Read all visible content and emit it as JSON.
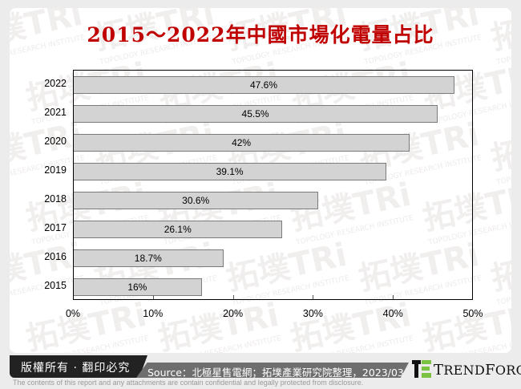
{
  "title": "2015～2022年中國市場化電量占比",
  "chart_data": {
    "type": "bar",
    "orientation": "horizontal",
    "title": "2015～2022年中國市場化電量占比",
    "categories": [
      "2022",
      "2021",
      "2020",
      "2019",
      "2018",
      "2017",
      "2016",
      "2015"
    ],
    "values": [
      47.6,
      45.5,
      42,
      39.1,
      30.6,
      26.1,
      18.7,
      16
    ],
    "data_labels": [
      "47.6%",
      "45.5%",
      "42%",
      "39.1%",
      "30.6%",
      "26.1%",
      "18.7%",
      "16%"
    ],
    "xlabel": "",
    "ylabel": "",
    "xlim": [
      0,
      50
    ],
    "x_ticks": [
      "0%",
      "10%",
      "20%",
      "30%",
      "40%",
      "50%"
    ],
    "grid": false,
    "bar_color": "#d3d3d3",
    "bar_border_color": "#7b7b7b",
    "legend": null
  },
  "footer": {
    "copyright": "版權所有 · 翻印必究",
    "source": "Source：北極星售電網；拓墣產業研究院整理，2023/03",
    "brand": "TrendForce",
    "disclaimer": "The contents of this report and any attachments are contain confidential and legally protected from disclosure."
  },
  "watermark": {
    "text": "拓墣TRi",
    "subtext": "TOPOLOGY RESEARCH INSTITUTE"
  },
  "colors": {
    "title": "#c00000",
    "background": "#ececec",
    "logo_green": "#7cc242"
  }
}
